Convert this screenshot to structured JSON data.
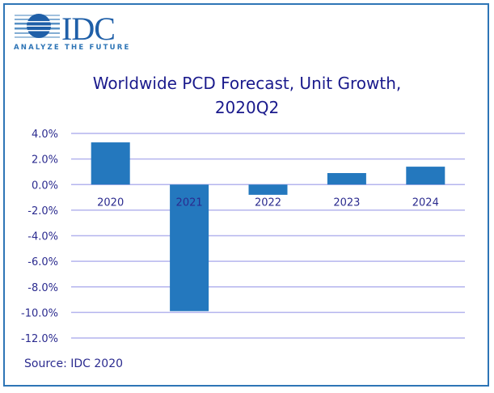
{
  "logo": {
    "brand": "IDC",
    "tagline": "ANALYZE THE FUTURE",
    "icon": "striped-globe-icon"
  },
  "source": "Source: IDC 2020",
  "colors": {
    "bar": "#2478be",
    "grid": "#b4b4ee",
    "text": "#2b2b8f",
    "title": "#1a1a8c",
    "border": "#2e75b6"
  },
  "chart_data": {
    "type": "bar",
    "title": "Worldwide PCD Forecast, Unit Growth, 2020Q2",
    "title_lines": [
      "Worldwide PCD Forecast, Unit Growth,",
      "2020Q2"
    ],
    "categories": [
      "2020",
      "2021",
      "2022",
      "2023",
      "2024"
    ],
    "values": [
      3.3,
      -9.9,
      -0.8,
      0.9,
      1.4
    ],
    "unit": "%",
    "xlabel": "",
    "ylabel": "",
    "ylim": [
      -12,
      4
    ],
    "yticks": [
      "4.0%",
      "2.0%",
      "0.0%",
      "-2.0%",
      "-4.0%",
      "-6.0%",
      "-8.0%",
      "-10.0%",
      "-12.0%"
    ],
    "ytick_values": [
      4,
      2,
      0,
      -2,
      -4,
      -6,
      -8,
      -10,
      -12
    ],
    "grid": true,
    "legend": "none"
  }
}
